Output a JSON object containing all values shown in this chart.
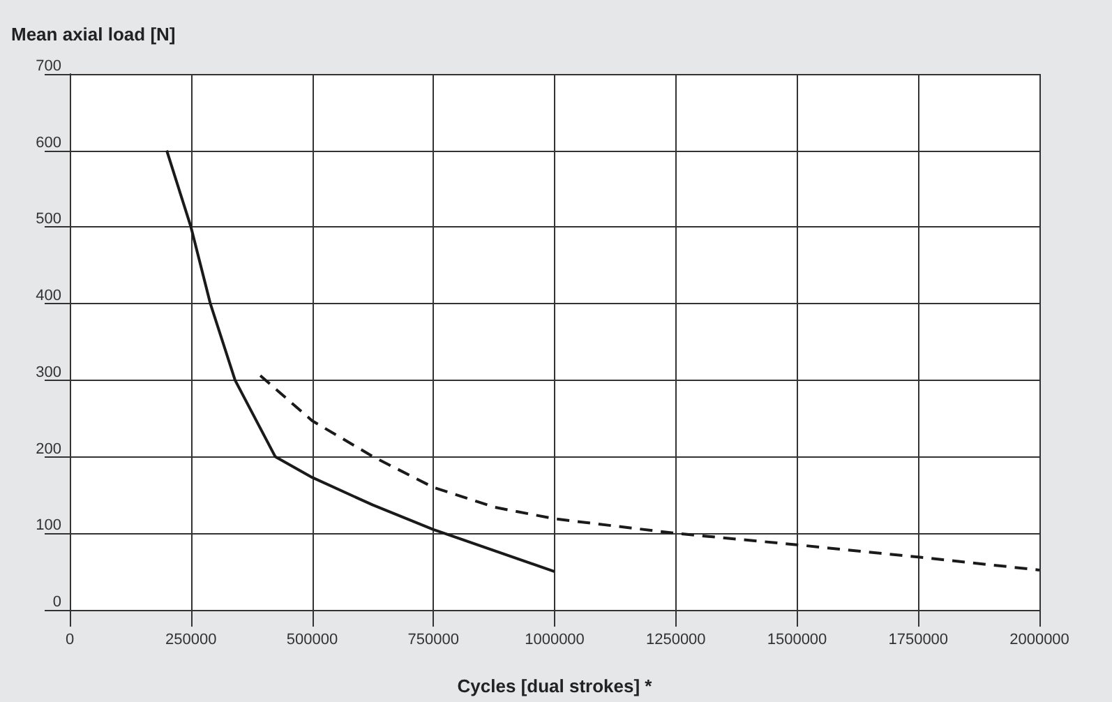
{
  "chart_data": {
    "type": "line",
    "xlabel": "Cycles [dual strokes] *",
    "ylabel": "Mean axial load [N]",
    "xlim": [
      0,
      2000000
    ],
    "xticks": [
      0,
      250000,
      500000,
      750000,
      1000000,
      1250000,
      1500000,
      1750000,
      2000000
    ],
    "ylim": [
      0,
      700
    ],
    "yticks": [
      0,
      100,
      200,
      300,
      400,
      500,
      600,
      700
    ],
    "grid": true,
    "marker": "none",
    "series": [
      {
        "color": "#1a1a1a",
        "line_style": "solid",
        "x": [
          200000,
          250000,
          290000,
          341000,
          424000,
          500000,
          625000,
          750000,
          1000000
        ],
        "values": [
          600,
          500,
          400,
          300,
          200,
          173,
          137,
          105,
          50
        ]
      },
      {
        "color": "#1a1a1a",
        "line_style": "dashed",
        "x": [
          393000,
          500000,
          626000,
          750000,
          877000,
          1000000,
          1250000,
          1500000,
          1750000,
          2000000
        ],
        "values": [
          306,
          247,
          200,
          160,
          134,
          119,
          100,
          85,
          69,
          52
        ]
      }
    ]
  }
}
